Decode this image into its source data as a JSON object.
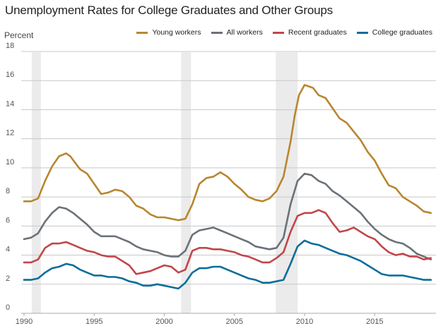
{
  "chart_data": {
    "type": "line",
    "title": "Unemployment Rates for College Graduates and Other Groups",
    "ylabel": "Percent",
    "xlabel": "",
    "xlim": [
      1989.9,
      2019.3
    ],
    "ylim": [
      0,
      18
    ],
    "yticks": [
      0,
      2,
      4,
      6,
      8,
      10,
      12,
      14,
      16,
      18
    ],
    "xticks": [
      1990,
      1995,
      2000,
      2005,
      2010,
      2015
    ],
    "grid": true,
    "legend_position": "top-right",
    "recessions": [
      [
        1990.55,
        1991.2
      ],
      [
        2001.2,
        2001.9
      ],
      [
        2007.95,
        2009.5
      ]
    ],
    "series": [
      {
        "name": "Young workers",
        "color": "#b8862f",
        "x": [
          1990,
          1990.5,
          1991,
          1991.5,
          1992,
          1992.5,
          1993,
          1993.3,
          1993.6,
          1994,
          1994.5,
          1995,
          1995.5,
          1996,
          1996.5,
          1997,
          1997.5,
          1998,
          1998.5,
          1999,
          1999.5,
          2000,
          2000.5,
          2001,
          2001.5,
          2002,
          2002.5,
          2003,
          2003.5,
          2004,
          2004.5,
          2005,
          2005.5,
          2006,
          2006.5,
          2007,
          2007.5,
          2008,
          2008.5,
          2009,
          2009.3,
          2009.6,
          2010,
          2010.3,
          2010.6,
          2011,
          2011.5,
          2012,
          2012.5,
          2013,
          2013.5,
          2014,
          2014.5,
          2015,
          2015.5,
          2016,
          2016.5,
          2017,
          2017.5,
          2018,
          2018.5,
          2019
        ],
        "values": [
          7.7,
          7.7,
          7.9,
          9.1,
          10.1,
          10.8,
          11.0,
          10.8,
          10.4,
          9.9,
          9.6,
          8.9,
          8.2,
          8.3,
          8.5,
          8.4,
          8.0,
          7.4,
          7.2,
          6.8,
          6.6,
          6.6,
          6.5,
          6.4,
          6.5,
          7.5,
          8.9,
          9.3,
          9.4,
          9.7,
          9.4,
          8.9,
          8.5,
          8.0,
          7.8,
          7.7,
          7.9,
          8.4,
          9.4,
          11.8,
          13.6,
          15.0,
          15.7,
          15.6,
          15.5,
          15.0,
          14.8,
          14.1,
          13.4,
          13.1,
          12.5,
          11.9,
          11.1,
          10.5,
          9.6,
          8.8,
          8.6,
          8.0,
          7.7,
          7.4,
          7.0,
          6.9
        ]
      },
      {
        "name": "All workers",
        "color": "#6b7178",
        "x": [
          1990,
          1990.5,
          1991,
          1991.5,
          1992,
          1992.5,
          1993,
          1993.5,
          1994,
          1994.5,
          1995,
          1995.5,
          1996,
          1996.5,
          1997,
          1997.5,
          1998,
          1998.5,
          1999,
          1999.5,
          2000,
          2000.5,
          2001,
          2001.5,
          2002,
          2002.5,
          2003,
          2003.5,
          2004,
          2004.5,
          2005,
          2005.5,
          2006,
          2006.5,
          2007,
          2007.5,
          2008,
          2008.5,
          2009,
          2009.5,
          2010,
          2010.5,
          2011,
          2011.5,
          2012,
          2012.5,
          2013,
          2013.5,
          2014,
          2014.5,
          2015,
          2015.5,
          2016,
          2016.5,
          2017,
          2017.5,
          2018,
          2018.5,
          2019
        ],
        "values": [
          5.1,
          5.2,
          5.5,
          6.3,
          6.9,
          7.3,
          7.2,
          6.9,
          6.5,
          6.1,
          5.6,
          5.3,
          5.3,
          5.3,
          5.1,
          4.9,
          4.6,
          4.4,
          4.3,
          4.2,
          4.0,
          3.9,
          3.9,
          4.3,
          5.4,
          5.7,
          5.8,
          5.9,
          5.7,
          5.5,
          5.3,
          5.1,
          4.9,
          4.6,
          4.5,
          4.4,
          4.5,
          5.2,
          7.5,
          9.1,
          9.6,
          9.5,
          9.1,
          8.9,
          8.4,
          8.1,
          7.7,
          7.3,
          6.9,
          6.3,
          5.8,
          5.4,
          5.1,
          4.9,
          4.8,
          4.5,
          4.1,
          3.9,
          3.7
        ]
      },
      {
        "name": "Recent graduates",
        "color": "#c0464a",
        "x": [
          1990,
          1990.5,
          1991,
          1991.5,
          1992,
          1992.5,
          1993,
          1993.5,
          1994,
          1994.5,
          1995,
          1995.5,
          1996,
          1996.5,
          1997,
          1997.5,
          1998,
          1998.5,
          1999,
          1999.5,
          2000,
          2000.5,
          2001,
          2001.5,
          2002,
          2002.5,
          2003,
          2003.5,
          2004,
          2004.5,
          2005,
          2005.5,
          2006,
          2006.5,
          2007,
          2007.5,
          2008,
          2008.5,
          2009,
          2009.5,
          2010,
          2010.5,
          2011,
          2011.5,
          2012,
          2012.5,
          2013,
          2013.5,
          2014,
          2014.5,
          2015,
          2015.5,
          2016,
          2016.5,
          2017,
          2017.5,
          2018,
          2018.5,
          2019
        ],
        "values": [
          3.5,
          3.5,
          3.7,
          4.5,
          4.8,
          4.8,
          4.9,
          4.7,
          4.5,
          4.3,
          4.2,
          4.0,
          3.9,
          3.9,
          3.6,
          3.3,
          2.7,
          2.8,
          2.9,
          3.1,
          3.3,
          3.2,
          2.8,
          3.0,
          4.3,
          4.5,
          4.5,
          4.4,
          4.4,
          4.3,
          4.2,
          4.0,
          3.9,
          3.7,
          3.5,
          3.5,
          3.8,
          4.2,
          5.6,
          6.7,
          6.9,
          6.9,
          7.1,
          6.9,
          6.2,
          5.6,
          5.7,
          5.9,
          5.6,
          5.3,
          5.1,
          4.6,
          4.2,
          4.0,
          4.1,
          3.9,
          3.9,
          3.7,
          3.8
        ]
      },
      {
        "name": "College graduates",
        "color": "#0a6d9a",
        "x": [
          1990,
          1990.5,
          1991,
          1991.5,
          1992,
          1992.5,
          1993,
          1993.5,
          1994,
          1994.5,
          1995,
          1995.5,
          1996,
          1996.5,
          1997,
          1997.5,
          1998,
          1998.5,
          1999,
          1999.5,
          2000,
          2000.5,
          2001,
          2001.5,
          2002,
          2002.5,
          2003,
          2003.5,
          2004,
          2004.5,
          2005,
          2005.5,
          2006,
          2006.5,
          2007,
          2007.5,
          2008,
          2008.5,
          2009,
          2009.5,
          2010,
          2010.5,
          2011,
          2011.5,
          2012,
          2012.5,
          2013,
          2013.5,
          2014,
          2014.5,
          2015,
          2015.5,
          2016,
          2016.5,
          2017,
          2017.5,
          2018,
          2018.5,
          2019
        ],
        "values": [
          2.3,
          2.3,
          2.4,
          2.8,
          3.1,
          3.2,
          3.4,
          3.3,
          3.0,
          2.8,
          2.6,
          2.6,
          2.5,
          2.5,
          2.4,
          2.2,
          2.1,
          1.9,
          1.9,
          2.0,
          1.9,
          1.8,
          1.7,
          2.1,
          2.8,
          3.1,
          3.1,
          3.2,
          3.2,
          3.0,
          2.8,
          2.6,
          2.4,
          2.3,
          2.1,
          2.1,
          2.2,
          2.3,
          3.4,
          4.6,
          5.0,
          4.8,
          4.7,
          4.5,
          4.3,
          4.1,
          4.0,
          3.8,
          3.6,
          3.3,
          3.0,
          2.7,
          2.6,
          2.6,
          2.6,
          2.5,
          2.4,
          2.3,
          2.3
        ]
      }
    ]
  }
}
